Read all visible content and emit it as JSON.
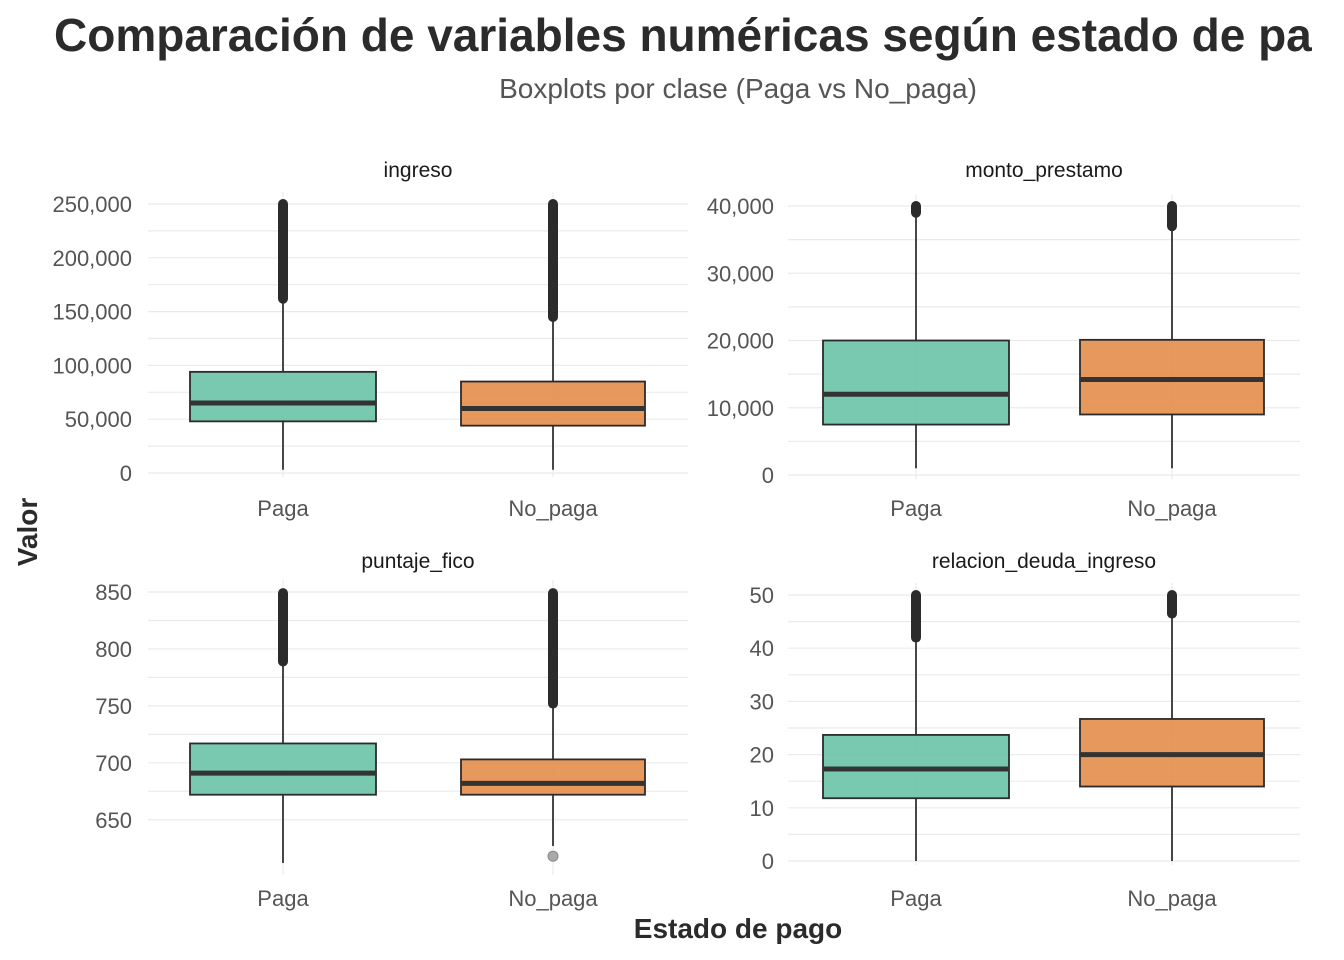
{
  "title": "Comparación de variables numéricas según estado de pa",
  "subtitle": "Boxplots por clase (Paga vs No_paga)",
  "xlabel": "Estado de pago",
  "ylabel": "Valor",
  "colors": {
    "Paga": "#66c2a5",
    "No_paga": "#e48a45",
    "line": "#333333",
    "outlier": "#2b2b2b"
  },
  "chart_data": [
    {
      "type": "boxplot",
      "panel": "ingreso",
      "categories": [
        "Paga",
        "No_paga"
      ],
      "ylim": [
        0,
        250000
      ],
      "yticks": [
        0,
        50000,
        100000,
        150000,
        200000,
        250000
      ],
      "ytick_labels": [
        "0",
        "50,000",
        "100,000",
        "150,000",
        "200,000",
        "250,000"
      ],
      "boxes": [
        {
          "class": "Paga",
          "whisker_low": 3000,
          "q1": 48000,
          "median": 65000,
          "q3": 94000,
          "whisker_high": 162000,
          "outliers": [
            162000,
            250000
          ]
        },
        {
          "class": "No_paga",
          "whisker_low": 3000,
          "q1": 44000,
          "median": 60000,
          "q3": 85000,
          "whisker_high": 145000,
          "outliers": [
            145000,
            250000
          ]
        }
      ]
    },
    {
      "type": "boxplot",
      "panel": "monto_prestamo",
      "categories": [
        "Paga",
        "No_paga"
      ],
      "ylim": [
        0,
        40000
      ],
      "yticks": [
        0,
        10000,
        20000,
        30000,
        40000
      ],
      "ytick_labels": [
        "0",
        "10,000",
        "20,000",
        "30,000",
        "40,000"
      ],
      "boxes": [
        {
          "class": "Paga",
          "whisker_low": 1000,
          "q1": 7500,
          "median": 12000,
          "q3": 20000,
          "whisker_high": 38500,
          "outliers": [
            39000,
            40000
          ]
        },
        {
          "class": "No_paga",
          "whisker_low": 1000,
          "q1": 9000,
          "median": 14200,
          "q3": 20100,
          "whisker_high": 37000,
          "outliers": [
            37000,
            40000
          ]
        }
      ]
    },
    {
      "type": "boxplot",
      "panel": "puntaje_fico",
      "categories": [
        "Paga",
        "No_paga"
      ],
      "ylim": [
        605,
        850
      ],
      "yticks": [
        650,
        700,
        750,
        800,
        850
      ],
      "ytick_labels": [
        "650",
        "700",
        "750",
        "800",
        "850"
      ],
      "boxes": [
        {
          "class": "Paga",
          "whisker_low": 612,
          "q1": 672,
          "median": 691,
          "q3": 717,
          "whisker_high": 786,
          "outliers": [
            789,
            849
          ]
        },
        {
          "class": "No_paga",
          "whisker_low": 627,
          "q1": 672,
          "median": 682,
          "q3": 703,
          "whisker_high": 751,
          "outliers": [
            752,
            849
          ],
          "low_outliers": [
            618
          ]
        }
      ]
    },
    {
      "type": "boxplot",
      "panel": "relacion_deuda_ingreso",
      "categories": [
        "Paga",
        "No_paga"
      ],
      "ylim": [
        0,
        50
      ],
      "yticks": [
        0,
        10,
        20,
        30,
        40,
        50
      ],
      "ytick_labels": [
        "0",
        "10",
        "20",
        "30",
        "40",
        "50"
      ],
      "boxes": [
        {
          "class": "Paga",
          "whisker_low": 0,
          "q1": 11.8,
          "median": 17.3,
          "q3": 23.7,
          "whisker_high": 41.5,
          "outliers": [
            42,
            50
          ]
        },
        {
          "class": "No_paga",
          "whisker_low": 0,
          "q1": 14,
          "median": 20,
          "q3": 26.7,
          "whisker_high": 46,
          "outliers": [
            46.5,
            50
          ]
        }
      ]
    }
  ]
}
